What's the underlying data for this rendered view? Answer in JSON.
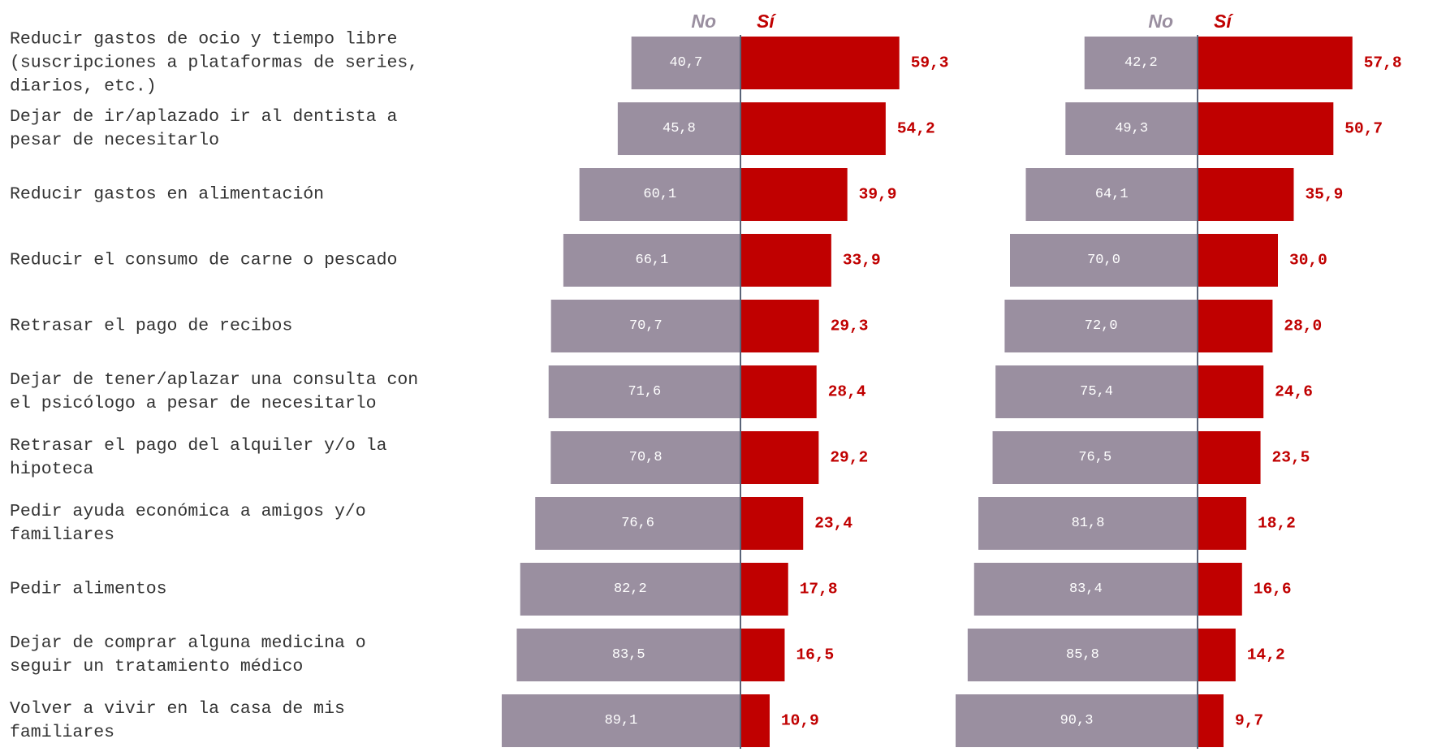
{
  "chart_data": {
    "type": "bar",
    "orientation": "horizontal-diverging",
    "categories": [
      [
        "Reducir gastos de ocio y tiempo libre",
        "(suscripciones a plataformas de series,",
        "diarios, etc.)"
      ],
      [
        "Dejar de ir/aplazado ir al dentista a",
        "pesar de necesitarlo"
      ],
      [
        "Reducir gastos en alimentación"
      ],
      [
        "Reducir el consumo de carne o pescado"
      ],
      [
        "Retrasar el pago de recibos"
      ],
      [
        "Dejar de tener/aplazar una consulta con",
        "el psicólogo a pesar de necesitarlo"
      ],
      [
        "Retrasar el pago del alquiler y/o la",
        "hipoteca"
      ],
      [
        "Pedir ayuda económica a amigos y/o",
        "familiares"
      ],
      [
        "Pedir alimentos"
      ],
      [
        "Dejar de comprar alguna medicina o",
        "seguir un tratamiento médico"
      ],
      [
        "Volver a vivir en la casa de mis",
        "familiares"
      ]
    ],
    "panels": [
      {
        "series": [
          {
            "name": "No",
            "color": "#9a8fa0",
            "values": [
              40.7,
              45.8,
              60.1,
              66.1,
              70.7,
              71.6,
              70.8,
              76.6,
              82.2,
              83.5,
              89.1
            ],
            "labels": [
              "40,7",
              "45,8",
              "60,1",
              "66,1",
              "70,7",
              "71,6",
              "70,8",
              "76,6",
              "82,2",
              "83,5",
              "89,1"
            ]
          },
          {
            "name": "Sí",
            "color": "#c00000",
            "values": [
              59.3,
              54.2,
              39.9,
              33.9,
              29.3,
              28.4,
              29.2,
              23.4,
              17.8,
              16.5,
              10.9
            ],
            "labels": [
              "59,3",
              "54,2",
              "39,9",
              "33,9",
              "29,3",
              "28,4",
              "29,2",
              "23,4",
              "17,8",
              "16,5",
              "10,9"
            ]
          }
        ]
      },
      {
        "series": [
          {
            "name": "No",
            "color": "#9a8fa0",
            "values": [
              42.2,
              49.3,
              64.1,
              70.0,
              72.0,
              75.4,
              76.5,
              81.8,
              83.4,
              85.8,
              90.3
            ],
            "labels": [
              "42,2",
              "49,3",
              "64,1",
              "70,0",
              "72,0",
              "75,4",
              "76,5",
              "81,8",
              "83,4",
              "85,8",
              "90,3"
            ]
          },
          {
            "name": "Sí",
            "color": "#c00000",
            "values": [
              57.8,
              50.7,
              35.9,
              30.0,
              28.0,
              24.6,
              23.5,
              18.2,
              16.6,
              14.2,
              9.7
            ],
            "labels": [
              "57,8",
              "50,7",
              "35,9",
              "30,0",
              "28,0",
              "24,6",
              "23,5",
              "18,2",
              "16,6",
              "14,2",
              "9,7"
            ]
          }
        ]
      }
    ],
    "axis_color": "#5a6478",
    "grid": false,
    "legend": "top"
  }
}
